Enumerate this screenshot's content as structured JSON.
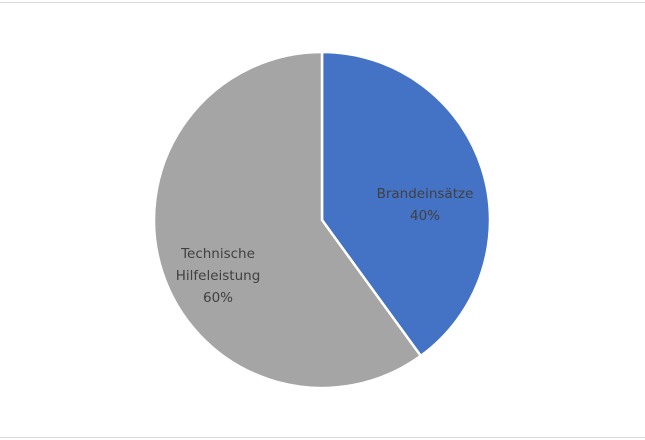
{
  "chart_data": {
    "type": "pie",
    "start_angle": "12 o'clock, clockwise",
    "slices": [
      {
        "label": "Brandeinsätze",
        "value": 40,
        "value_label": "40%",
        "color": "#4472c4"
      },
      {
        "label": "Technische Hilfeleistung",
        "label_lines": [
          "Technische",
          "Hilfeleistung"
        ],
        "value": 60,
        "value_label": "60%",
        "color": "#a5a5a5"
      }
    ],
    "legend": "none",
    "slice_border_color": "#ffffff"
  }
}
